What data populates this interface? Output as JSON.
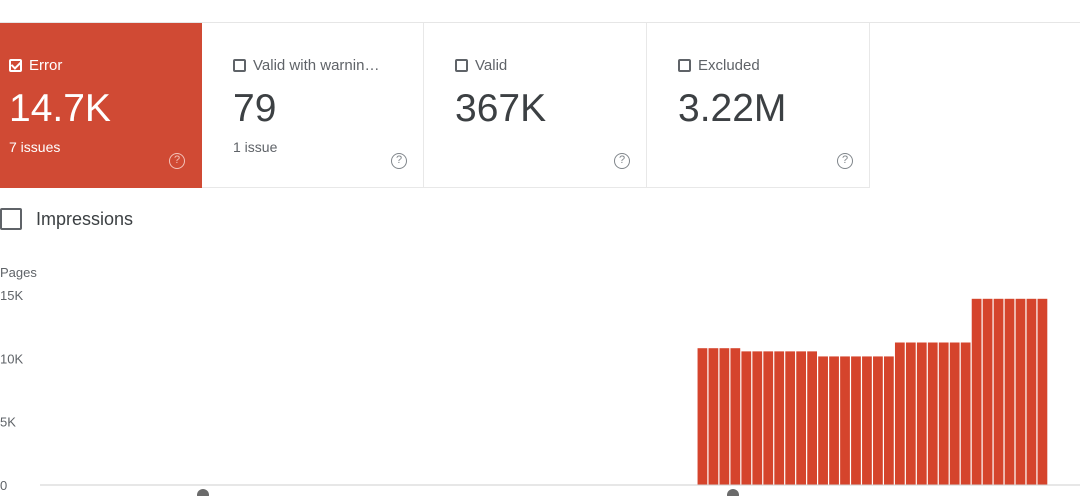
{
  "tiles": [
    {
      "label": "Error",
      "value": "14.7K",
      "sub": "7 issues",
      "active": true,
      "help": "?"
    },
    {
      "label": "Valid with warnin…",
      "value": "79",
      "sub": "1 issue",
      "active": false,
      "help": "?"
    },
    {
      "label": "Valid",
      "value": "367K",
      "sub": "",
      "active": false,
      "help": "?"
    },
    {
      "label": "Excluded",
      "value": "3.22M",
      "sub": "",
      "active": false,
      "help": "?"
    }
  ],
  "impressions": {
    "label": "Impressions",
    "checked": false
  },
  "colors": {
    "accent": "#d04a34",
    "bar": "#d5442c"
  },
  "chart_data": {
    "type": "bar",
    "ylabel": "Pages",
    "yticks": [
      "0",
      "5K",
      "10K",
      "15K"
    ],
    "ylim": [
      0,
      15000
    ],
    "grid": false,
    "series": [
      {
        "color": "#d5442c",
        "values": [
          0,
          0,
          0,
          0,
          0,
          0,
          0,
          0,
          0,
          0,
          0,
          0,
          0,
          0,
          0,
          0,
          0,
          0,
          0,
          0,
          0,
          0,
          0,
          0,
          0,
          0,
          0,
          0,
          0,
          0,
          0,
          0,
          0,
          0,
          0,
          0,
          0,
          0,
          0,
          0,
          0,
          0,
          0,
          0,
          0,
          0,
          0,
          0,
          0,
          0,
          0,
          0,
          0,
          0,
          0,
          0,
          0,
          0,
          0,
          10800,
          10800,
          10800,
          10800,
          10550,
          10550,
          10550,
          10550,
          10550,
          10550,
          10550,
          10150,
          10150,
          10150,
          10150,
          10150,
          10150,
          10150,
          11250,
          11250,
          11250,
          11250,
          11250,
          11250,
          11250,
          14700,
          14700,
          14700,
          14700,
          14700,
          14700,
          14700
        ]
      }
    ]
  }
}
